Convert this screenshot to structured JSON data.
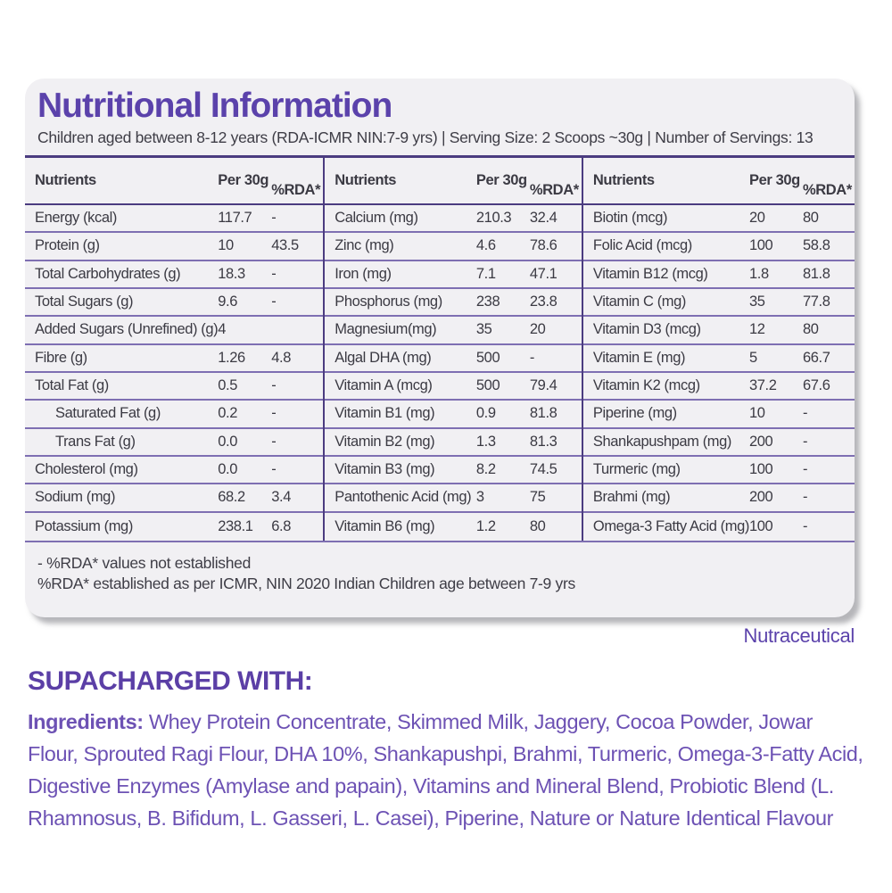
{
  "page": {
    "title": "Nutritional Information",
    "subtitle": "Children aged between 8-12 years (RDA-ICMR NIN:7-9 yrs) | Serving Size: 2 Scoops ~30g | Number of Servings: 13",
    "brand_mark": "Nutraceutical"
  },
  "colors": {
    "heading_purple": "#5b42ab",
    "table_heavy_line": "#4b3c80",
    "table_row_line": "#7e6fb2",
    "cell_text": "#3b3a43",
    "card_background": "#f1f0f3",
    "ingredients_purple": "#6d52b4"
  },
  "table": {
    "header": {
      "nutrients": "Nutrients",
      "per_30g": "Per\n30g",
      "rda": "%RDA*"
    },
    "groups": [
      {
        "rows": [
          {
            "label": "Energy (kcal)",
            "per30g": "117.7",
            "rda": "-",
            "indent": false
          },
          {
            "label": "Protein (g)",
            "per30g": "10",
            "rda": "43.5",
            "indent": false
          },
          {
            "label": "Total Carbohydrates (g)",
            "per30g": "18.3",
            "rda": "-",
            "indent": false
          },
          {
            "label": "Total Sugars (g)",
            "per30g": "9.6",
            "rda": "-",
            "indent": false
          },
          {
            "label": "Added Sugars (Unrefined) (g)",
            "per30g": "4",
            "rda": "",
            "indent": false
          },
          {
            "label": "Fibre (g)",
            "per30g": "1.26",
            "rda": "4.8",
            "indent": false
          },
          {
            "label": "Total Fat (g)",
            "per30g": "0.5",
            "rda": "-",
            "indent": false
          },
          {
            "label": "Saturated Fat (g)",
            "per30g": "0.2",
            "rda": "-",
            "indent": true
          },
          {
            "label": "Trans Fat (g)",
            "per30g": "0.0",
            "rda": "-",
            "indent": true
          },
          {
            "label": "Cholesterol (mg)",
            "per30g": "0.0",
            "rda": "-",
            "indent": false
          },
          {
            "label": "Sodium (mg)",
            "per30g": "68.2",
            "rda": "3.4",
            "indent": false
          },
          {
            "label": "Potassium (mg)",
            "per30g": "238.1",
            "rda": "6.8",
            "indent": false
          }
        ]
      },
      {
        "rows": [
          {
            "label": "Calcium (mg)",
            "per30g": "210.3",
            "rda": "32.4",
            "indent": false
          },
          {
            "label": "Zinc (mg)",
            "per30g": "4.6",
            "rda": "78.6",
            "indent": false
          },
          {
            "label": "Iron (mg)",
            "per30g": "7.1",
            "rda": "47.1",
            "indent": false
          },
          {
            "label": "Phosphorus (mg)",
            "per30g": "238",
            "rda": "23.8",
            "indent": false
          },
          {
            "label": "Magnesium(mg)",
            "per30g": "35",
            "rda": "20",
            "indent": false
          },
          {
            "label": "Algal DHA (mg)",
            "per30g": "500",
            "rda": "-",
            "indent": false
          },
          {
            "label": "Vitamin A (mcg)",
            "per30g": "500",
            "rda": "79.4",
            "indent": false
          },
          {
            "label": "Vitamin B1 (mg)",
            "per30g": "0.9",
            "rda": "81.8",
            "indent": false
          },
          {
            "label": "Vitamin B2 (mg)",
            "per30g": "1.3",
            "rda": "81.3",
            "indent": false
          },
          {
            "label": "Vitamin B3 (mg)",
            "per30g": "8.2",
            "rda": "74.5",
            "indent": false
          },
          {
            "label": "Pantothenic Acid (mg)",
            "per30g": "3",
            "rda": "75",
            "indent": false
          },
          {
            "label": "Vitamin B6 (mg)",
            "per30g": "1.2",
            "rda": "80",
            "indent": false
          }
        ]
      },
      {
        "rows": [
          {
            "label": "Biotin (mcg)",
            "per30g": "20",
            "rda": "80",
            "indent": false
          },
          {
            "label": "Folic Acid (mcg)",
            "per30g": "100",
            "rda": "58.8",
            "indent": false
          },
          {
            "label": "Vitamin B12 (mcg)",
            "per30g": "1.8",
            "rda": "81.8",
            "indent": false
          },
          {
            "label": "Vitamin C (mg)",
            "per30g": "35",
            "rda": "77.8",
            "indent": false
          },
          {
            "label": "Vitamin D3 (mcg)",
            "per30g": "12",
            "rda": "80",
            "indent": false
          },
          {
            "label": "Vitamin E (mg)",
            "per30g": "5",
            "rda": "66.7",
            "indent": false
          },
          {
            "label": "Vitamin K2 (mcg)",
            "per30g": "37.2",
            "rda": "67.6",
            "indent": false
          },
          {
            "label": "Piperine (mg)",
            "per30g": "10",
            "rda": "-",
            "indent": false
          },
          {
            "label": "Shankapushpam (mg)",
            "per30g": "200",
            "rda": "-",
            "indent": false
          },
          {
            "label": "Turmeric (mg)",
            "per30g": "100",
            "rda": "-",
            "indent": false
          },
          {
            "label": "Brahmi (mg)",
            "per30g": "200",
            "rda": "-",
            "indent": false
          },
          {
            "label": "Omega-3 Fatty Acid (mg)",
            "per30g": "100",
            "rda": "-",
            "indent": false
          }
        ]
      }
    ],
    "footnote_1": "- %RDA* values not established",
    "footnote_2": "%RDA* established as per ICMR, NIN 2020 Indian Children age between 7-9 yrs"
  },
  "supercharged": {
    "heading": "SUPACHARGED WITH:",
    "ingredients_label": "Ingredients:",
    "ingredients_text": "Whey Protein Concentrate, Skimmed Milk, Jaggery, Cocoa  Powder, Jowar Flour, Sprouted Ragi Flour, DHA 10%, Shankapushpi, Brahmi, Turmeric, Omega-3-Fatty Acid, Digestive Enzymes (Amylase and papain), Vitamins and Mineral Blend, Probiotic Blend (L. Rhamnosus, B. Bifidum, L. Gasseri, L. Casei), Piperine, Nature or Nature Identical Flavour"
  }
}
